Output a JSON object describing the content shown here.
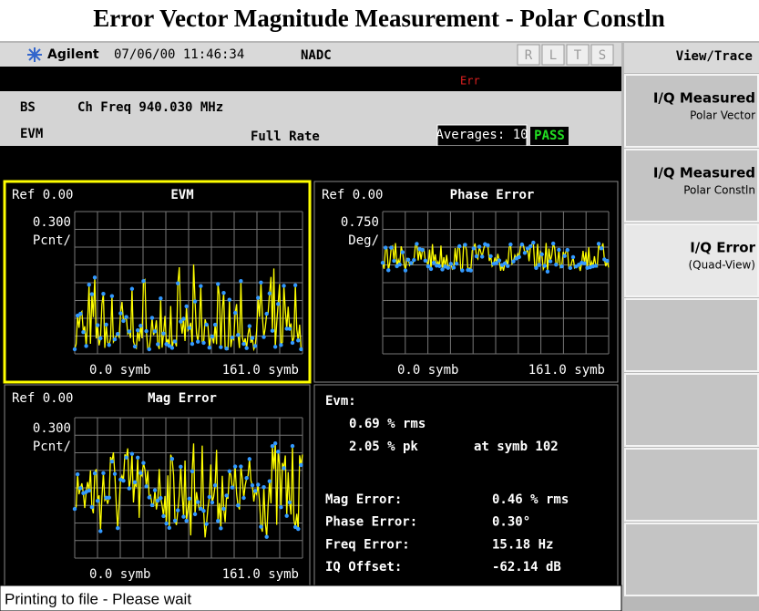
{
  "header": {
    "title": "Error Vector Magnitude Measurement - Polar Constln"
  },
  "status_bar": {
    "brand": "Agilent",
    "datetime": "07/06/00 11:46:34",
    "mode": "NADC",
    "indicators": [
      "R",
      "L",
      "T",
      "S"
    ]
  },
  "error_line": {
    "text": "Err"
  },
  "info": {
    "line1": {
      "label": "BS",
      "text": "Ch Freq 940.030 MHz"
    },
    "line2": {
      "label": "EVM",
      "text": "Full Rate"
    },
    "averages": "Averages: 10",
    "result": "PASS"
  },
  "panels": [
    {
      "ref": "Ref 0.00",
      "title": "EVM",
      "scale": "0.300",
      "unit": "Pcnt/",
      "x_start": "0.0 symb",
      "x_end": "161.0 symb"
    },
    {
      "ref": "Ref 0.00",
      "title": "Phase Error",
      "scale": "0.750",
      "unit": "Deg/",
      "x_start": "0.0 symb",
      "x_end": "161.0 symb"
    },
    {
      "ref": "Ref 0.00",
      "title": "Mag Error",
      "scale": "0.300",
      "unit": "Pcnt/",
      "x_start": "0.0 symb",
      "x_end": "161.0 symb"
    }
  ],
  "summary": {
    "heading": "Evm:",
    "rms": "0.69 % rms",
    "pk": "2.05 % pk",
    "pk_at": "at symb 102",
    "rows": [
      {
        "label": "Mag Error:",
        "value": "0.46 % rms"
      },
      {
        "label": "Phase Error:",
        "value": "0.30°"
      },
      {
        "label": "Freq Error:",
        "value": "15.18 Hz"
      },
      {
        "label": "IQ Offset:",
        "value": "-62.14 dB"
      }
    ]
  },
  "softkeys": {
    "menu": "View/Trace",
    "keys": [
      {
        "label": "I/Q Measured",
        "sub": "Polar Vector"
      },
      {
        "label": "I/Q Measured",
        "sub": "Polar Constln"
      },
      {
        "label": "I/Q Error",
        "sub": "(Quad-View)"
      }
    ]
  },
  "message": "Printing to file - Please wait"
}
